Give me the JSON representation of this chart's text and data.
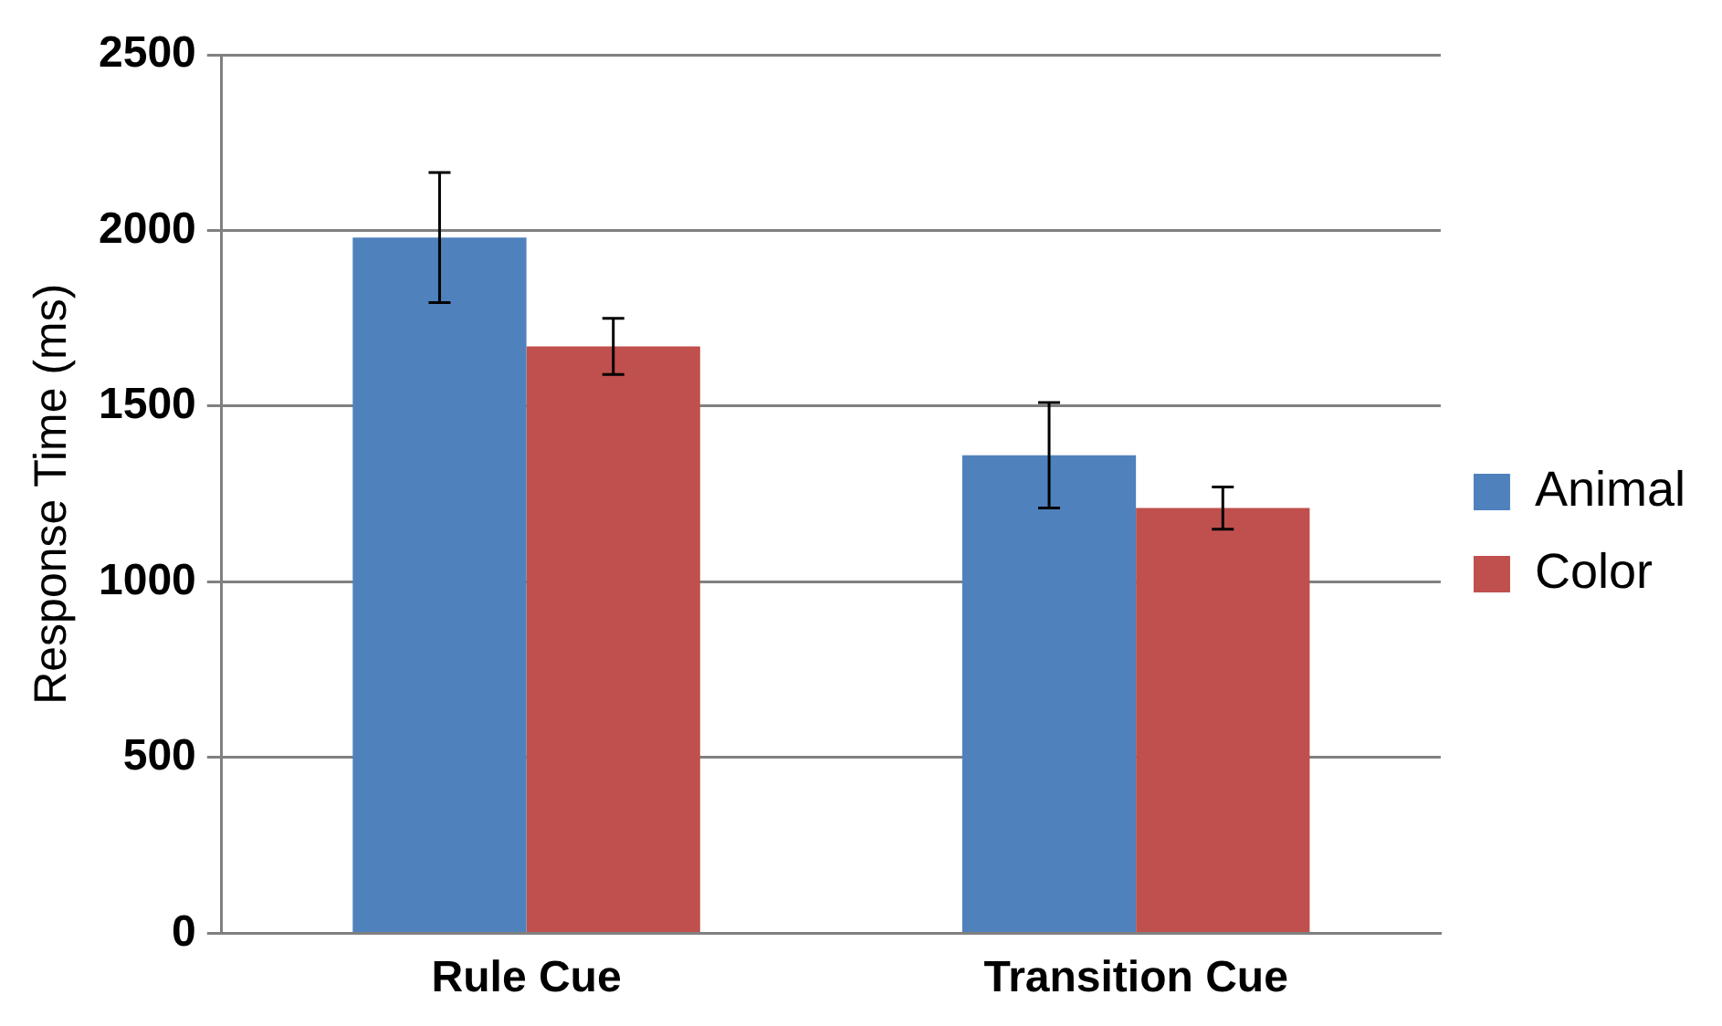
{
  "chart_data": {
    "type": "bar",
    "ylabel": "Response Time (ms)",
    "categories": [
      "Rule Cue",
      "Transition Cue"
    ],
    "series": [
      {
        "name": "Animal",
        "color": "#4f81bd",
        "values": [
          1980,
          1360
        ],
        "errors": [
          185,
          150
        ]
      },
      {
        "name": "Color",
        "color": "#c0504d",
        "values": [
          1670,
          1210
        ],
        "errors": [
          80,
          60
        ]
      }
    ],
    "ylim": [
      0,
      2500
    ],
    "yticks": [
      0,
      500,
      1000,
      1500,
      2000,
      2500
    ],
    "grid": "y",
    "legend": "right"
  }
}
